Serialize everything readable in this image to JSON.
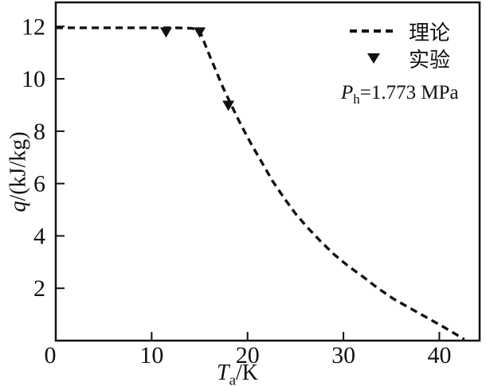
{
  "figure": {
    "background": "#ffffff",
    "ink": "#111111"
  },
  "chart_data": {
    "type": "line",
    "title": "",
    "xlabel": {
      "symbol": "T",
      "sub": "a",
      "rest": "/K"
    },
    "ylabel": {
      "symbol": "q",
      "rest": "/(kJ/kg)"
    },
    "xlim": [
      0,
      44.2
    ],
    "ylim": [
      0,
      12.92
    ],
    "x_ticks": [
      0,
      10,
      20,
      30,
      40
    ],
    "y_ticks": [
      2,
      4,
      6,
      8,
      10,
      12
    ],
    "grid": false,
    "legend_position": "top-right",
    "series": [
      {
        "name": "理论",
        "type": "line",
        "style": "dashed",
        "color": "#111111",
        "dash": [
          9,
          6
        ],
        "points": [
          [
            0,
            11.95
          ],
          [
            2.5,
            11.95
          ],
          [
            5,
            11.95
          ],
          [
            7.5,
            11.95
          ],
          [
            10,
            11.95
          ],
          [
            12.5,
            11.95
          ],
          [
            14.2,
            11.93
          ],
          [
            15.0,
            11.85
          ],
          [
            15.8,
            11.1
          ],
          [
            16.6,
            10.4
          ],
          [
            17.4,
            9.7
          ],
          [
            18.3,
            9.0
          ],
          [
            19.3,
            8.25
          ],
          [
            20.4,
            7.5
          ],
          [
            21.5,
            6.8
          ],
          [
            22.6,
            6.1
          ],
          [
            23.8,
            5.45
          ],
          [
            25.0,
            4.85
          ],
          [
            26.3,
            4.3
          ],
          [
            27.6,
            3.8
          ],
          [
            29.0,
            3.3
          ],
          [
            30.5,
            2.85
          ],
          [
            32.0,
            2.45
          ],
          [
            33.6,
            2.0
          ],
          [
            35.2,
            1.6
          ],
          [
            36.9,
            1.25
          ],
          [
            38.6,
            0.9
          ],
          [
            40.3,
            0.55
          ],
          [
            41.7,
            0.25
          ],
          [
            42.6,
            0.05
          ]
        ]
      },
      {
        "name": "实验",
        "type": "scatter",
        "marker": "triangle-down",
        "color": "#111111",
        "points": [
          [
            11.5,
            11.8
          ],
          [
            15.0,
            11.8
          ],
          [
            18.0,
            9.0
          ]
        ]
      }
    ],
    "legend": {
      "entries": [
        {
          "marker": "dashed-line",
          "label": "理论"
        },
        {
          "marker": "triangle-down",
          "label": "实验"
        }
      ]
    },
    "annotation": {
      "symbol": "P",
      "sub": "h",
      "rest": "=1.773 MPa"
    }
  }
}
